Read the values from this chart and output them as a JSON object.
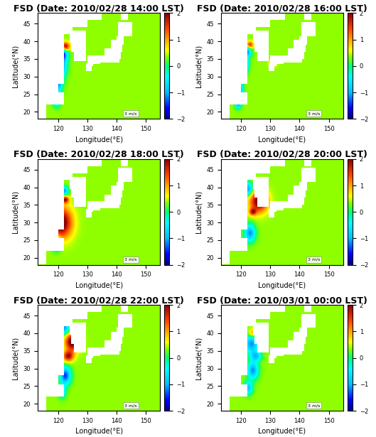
{
  "titles": [
    "FSD (Date: 2010/02/28 14:00 LST)",
    "FSD (Date: 2010/02/28 16:00 LST)",
    "FSD (Date: 2010/02/28 18:00 LST)",
    "FSD (Date: 2010/02/28 20:00 LST)",
    "FSD (Date: 2010/02/28 22:00 LST)",
    "FSD (Date: 2010/03/01 00:00 LST)"
  ],
  "lon_range": [
    113,
    155
  ],
  "lat_range": [
    18,
    48
  ],
  "xlabel": "Longitude(°E)",
  "ylabel": "Latitude(°N)",
  "vmin": -2,
  "vmax": 2,
  "colorbar_ticks": [
    -2,
    -1,
    0,
    1,
    2
  ],
  "figsize": [
    5.29,
    6.15
  ],
  "dpi": 100,
  "title_fontsize": 9,
  "axis_label_fontsize": 7,
  "tick_fontsize": 6,
  "colorbar_fontsize": 6,
  "scale_bar_text": "3 m/s",
  "bg_value": 0.35,
  "panels": [
    {
      "blobs": [
        {
          "lon": 122.5,
          "lat": 38.5,
          "sx": 1.2,
          "sy": 1.0,
          "val": 1.8
        },
        {
          "lon": 121.5,
          "lat": 36.5,
          "sx": 1.5,
          "sy": 1.5,
          "val": -1.8
        },
        {
          "lon": 121.0,
          "lat": 33.0,
          "sx": 1.5,
          "sy": 2.5,
          "val": -1.8
        },
        {
          "lon": 120.0,
          "lat": 28.0,
          "sx": 1.2,
          "sy": 2.0,
          "val": -1.5
        },
        {
          "lon": 119.5,
          "lat": 23.5,
          "sx": 1.0,
          "sy": 1.5,
          "val": -1.5
        }
      ]
    },
    {
      "blobs": [
        {
          "lon": 123.0,
          "lat": 39.0,
          "sx": 1.0,
          "sy": 0.8,
          "val": 1.2
        },
        {
          "lon": 122.0,
          "lat": 37.0,
          "sx": 1.2,
          "sy": 1.2,
          "val": -1.5
        },
        {
          "lon": 121.0,
          "lat": 33.5,
          "sx": 1.2,
          "sy": 1.8,
          "val": -1.8
        },
        {
          "lon": 119.5,
          "lat": 26.0,
          "sx": 1.0,
          "sy": 2.0,
          "val": -1.5
        },
        {
          "lon": 119.0,
          "lat": 22.5,
          "sx": 0.8,
          "sy": 1.2,
          "val": -1.5
        },
        {
          "lon": 131.0,
          "lat": 34.0,
          "sx": 1.0,
          "sy": 0.8,
          "val": 0.8
        }
      ]
    },
    {
      "blobs": [
        {
          "lon": 122.0,
          "lat": 39.0,
          "sx": 1.2,
          "sy": 1.0,
          "val": -1.5
        },
        {
          "lon": 122.5,
          "lat": 36.5,
          "sx": 1.0,
          "sy": 0.8,
          "val": 1.5
        },
        {
          "lon": 121.0,
          "lat": 30.0,
          "sx": 3.0,
          "sy": 3.5,
          "val": 2.0
        },
        {
          "lon": 119.5,
          "lat": 24.0,
          "sx": 1.2,
          "sy": 1.5,
          "val": -1.5
        }
      ]
    },
    {
      "blobs": [
        {
          "lon": 122.5,
          "lat": 39.5,
          "sx": 1.2,
          "sy": 1.5,
          "val": -1.5
        },
        {
          "lon": 126.0,
          "lat": 36.0,
          "sx": 2.5,
          "sy": 2.5,
          "val": 1.8
        },
        {
          "lon": 124.0,
          "lat": 33.0,
          "sx": 1.0,
          "sy": 0.8,
          "val": 1.2
        },
        {
          "lon": 123.0,
          "lat": 27.0,
          "sx": 1.5,
          "sy": 2.0,
          "val": -1.5
        }
      ]
    },
    {
      "blobs": [
        {
          "lon": 122.0,
          "lat": 41.5,
          "sx": 1.5,
          "sy": 1.5,
          "val": -1.5
        },
        {
          "lon": 125.0,
          "lat": 37.5,
          "sx": 2.0,
          "sy": 2.0,
          "val": 2.0
        },
        {
          "lon": 123.5,
          "lat": 33.5,
          "sx": 1.5,
          "sy": 1.2,
          "val": 1.5
        },
        {
          "lon": 122.5,
          "lat": 28.0,
          "sx": 1.5,
          "sy": 2.0,
          "val": -1.8
        },
        {
          "lon": 121.5,
          "lat": 23.5,
          "sx": 1.0,
          "sy": 1.5,
          "val": -1.0
        }
      ]
    },
    {
      "blobs": [
        {
          "lon": 124.0,
          "lat": 40.0,
          "sx": 1.2,
          "sy": 1.0,
          "val": 0.8
        },
        {
          "lon": 123.5,
          "lat": 37.0,
          "sx": 2.0,
          "sy": 2.0,
          "val": -1.5
        },
        {
          "lon": 125.0,
          "lat": 33.5,
          "sx": 1.5,
          "sy": 1.2,
          "val": -1.2
        },
        {
          "lon": 124.0,
          "lat": 29.5,
          "sx": 1.5,
          "sy": 2.0,
          "val": -1.5
        },
        {
          "lon": 122.5,
          "lat": 24.5,
          "sx": 1.2,
          "sy": 1.5,
          "val": -1.2
        }
      ]
    }
  ]
}
